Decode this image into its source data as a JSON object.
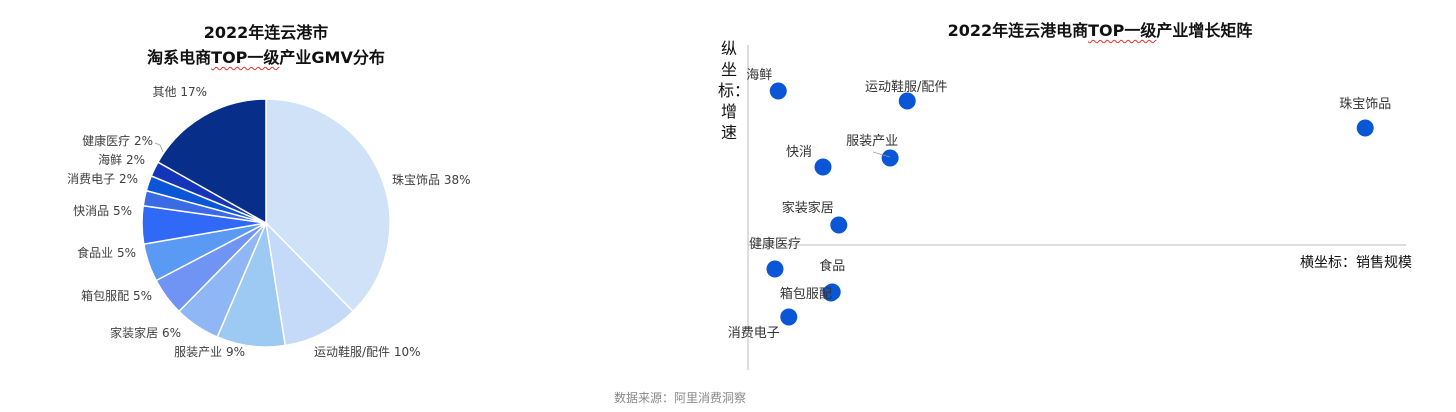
{
  "chart_data": [
    {
      "type": "pie",
      "title_line1": "2022年连云港市",
      "title_line2_pre": "淘系电商",
      "title_line2_wavy": "TOP一级",
      "title_line2_post": "产业GMV分布",
      "start": "top",
      "direction": "clockwise",
      "slices": [
        {
          "label": "珠宝饰品 38%",
          "name": "珠宝饰品",
          "value": 38,
          "color": "#cfe2f8"
        },
        {
          "label": "运动鞋服/配件 10%",
          "name": "运动鞋服/配件",
          "value": 10,
          "color": "#c5d9f8"
        },
        {
          "label": "服装产业 9%",
          "name": "服装产业",
          "value": 9,
          "color": "#9dcaf3"
        },
        {
          "label": "家装家居 6%",
          "name": "家装家居",
          "value": 6,
          "color": "#8fb6f5"
        },
        {
          "label": "箱包服配 5%",
          "name": "箱包服配",
          "value": 5,
          "color": "#6f94f3"
        },
        {
          "label": "食品业 5%",
          "name": "食品业",
          "value": 5,
          "color": "#5a99f4"
        },
        {
          "label": "快消品 5%",
          "name": "快消品",
          "value": 5,
          "color": "#2f69f5"
        },
        {
          "label": "消费电子 2%",
          "name": "消费电子",
          "value": 2,
          "color": "#3a6ae4"
        },
        {
          "label": "海鲜 2%",
          "name": "海鲜",
          "value": 2,
          "color": "#0b56d6"
        },
        {
          "label": "健康医疗 2%",
          "name": "健康医疗",
          "value": 2,
          "color": "#1535b8"
        },
        {
          "label": "其他 17%",
          "name": "其他",
          "value": 17,
          "color": "#072f8a"
        }
      ]
    },
    {
      "type": "scatter",
      "title_pre": "2022年连云港电商",
      "title_wavy": "TOP一级",
      "title_post": "产业增长矩阵",
      "ylabel": "纵坐标：增速",
      "xlabel": "横坐标：销售规模",
      "point_color": "#0b56d6",
      "grid": false,
      "points": [
        {
          "name": "海鲜",
          "x": 4.6,
          "y": 61.6
        },
        {
          "name": "运动鞋服/配件",
          "x": 24.2,
          "y": 57.6
        },
        {
          "name": "珠宝饰品",
          "x": 93.8,
          "y": 46.8
        },
        {
          "name": "服装产业",
          "x": 21.6,
          "y": 34.8
        },
        {
          "name": "快消",
          "x": 11.4,
          "y": 31.2
        },
        {
          "name": "家装家居",
          "x": 13.8,
          "y": 8
        },
        {
          "name": "健康医疗",
          "x": 4.1,
          "y": -9.6
        },
        {
          "name": "食品",
          "x": 12.8,
          "y": -18.8
        },
        {
          "name": "箱包服配",
          "x": 12.6,
          "y": -19.2
        },
        {
          "name": "消费电子",
          "x": 6.2,
          "y": -28.8
        }
      ]
    }
  ],
  "footer": {
    "source": "数据来源：阿里消费洞察"
  }
}
